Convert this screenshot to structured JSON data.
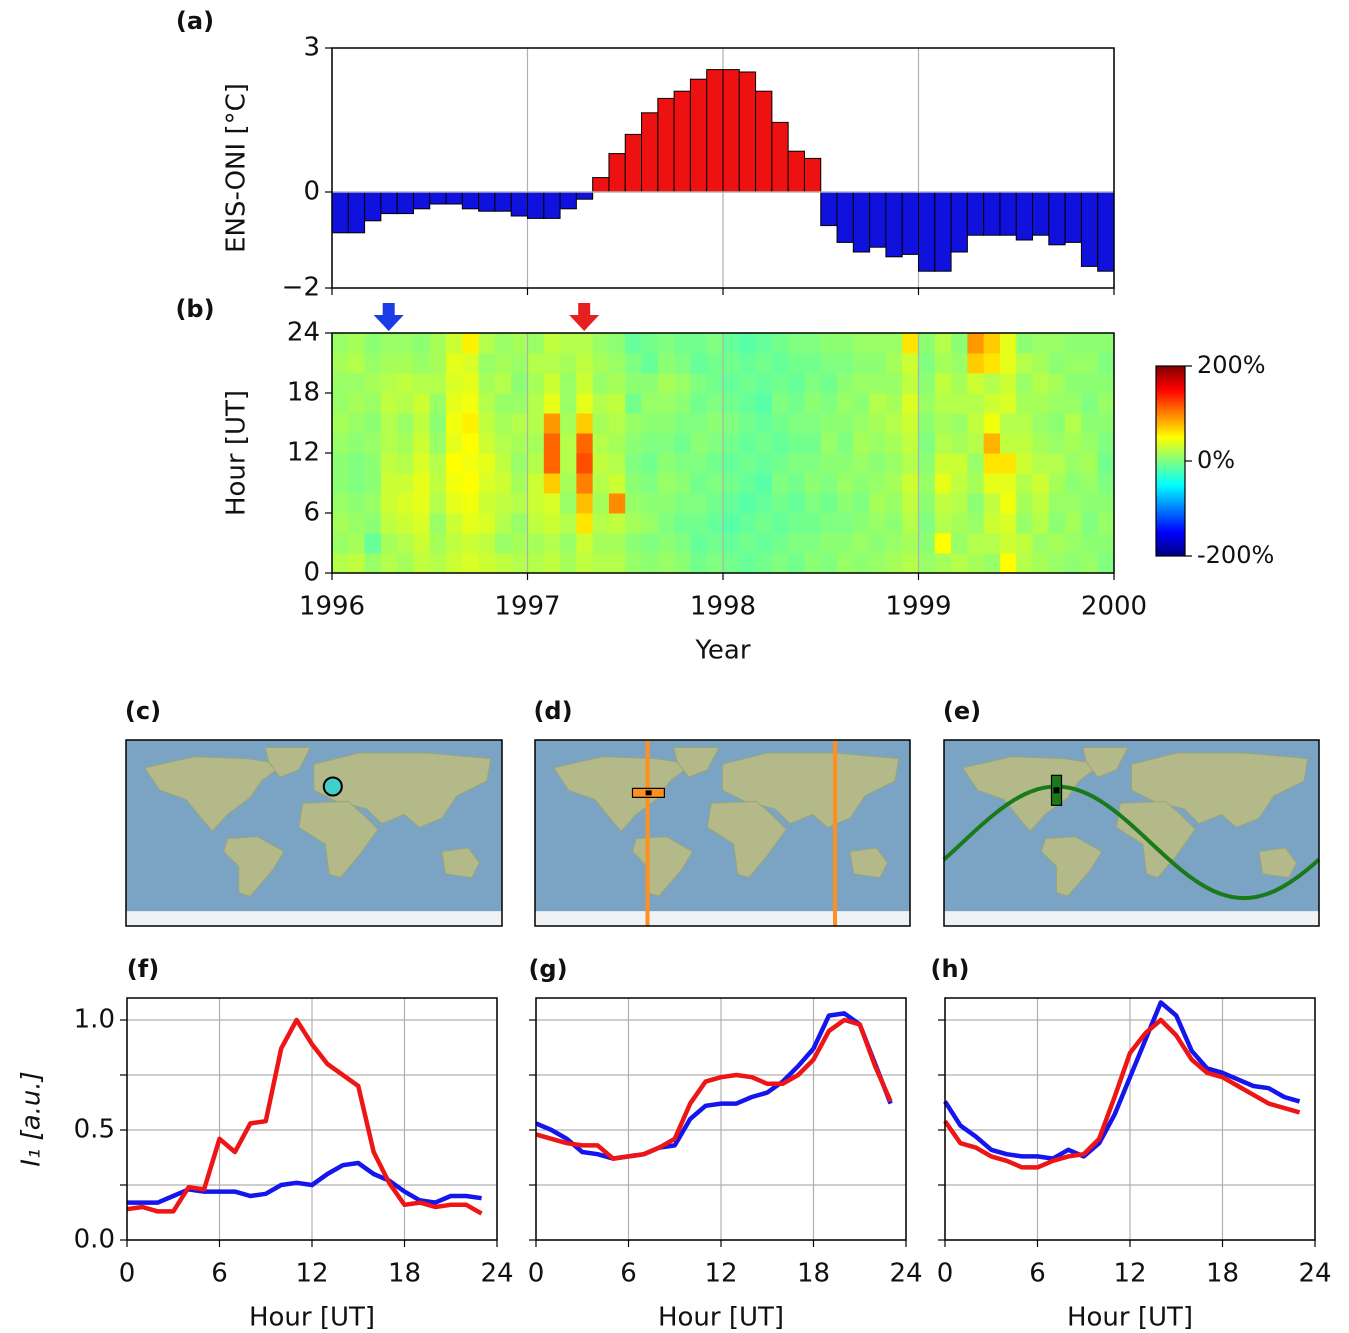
{
  "chart_data": [
    {
      "type": "bar",
      "panel": "(a)",
      "ylabel": "ENS-ONI [°C]",
      "values": [
        -0.85,
        -0.85,
        -0.6,
        -0.45,
        -0.45,
        -0.35,
        -0.25,
        -0.25,
        -0.35,
        -0.4,
        -0.4,
        -0.5,
        -0.55,
        -0.55,
        -0.35,
        -0.15,
        0.3,
        0.8,
        1.2,
        1.65,
        1.95,
        2.1,
        2.35,
        2.55,
        2.55,
        2.5,
        2.1,
        1.45,
        0.85,
        0.7,
        -0.7,
        -1.05,
        -1.25,
        -1.15,
        -1.35,
        -1.3,
        -1.65,
        -1.65,
        -1.25,
        -0.9,
        -0.9,
        -0.9,
        -1.0,
        -0.9,
        -1.1,
        -1.05,
        -1.55,
        -1.65
      ],
      "positive_color": "#ee1111",
      "negative_color": "#1111dd",
      "ylim": [
        -2,
        3
      ],
      "yticks": [
        {
          "value": -2,
          "label": "−2"
        },
        0,
        3
      ],
      "grid": true
    },
    {
      "type": "heatmap",
      "panel": "(b)",
      "xlabel": "Year",
      "ylabel": "Hour [UT]",
      "z": [
        [
          20,
          10,
          15,
          10,
          5,
          5,
          10,
          15,
          10,
          10,
          15,
          10
        ],
        [
          25,
          15,
          10,
          5,
          0,
          0,
          5,
          10,
          15,
          10,
          20,
          15
        ],
        [
          10,
          -10,
          5,
          10,
          5,
          5,
          10,
          5,
          10,
          15,
          10,
          5
        ],
        [
          20,
          15,
          25,
          30,
          30,
          25,
          20,
          20,
          25,
          20,
          15,
          10
        ],
        [
          15,
          20,
          30,
          35,
          30,
          20,
          15,
          10,
          20,
          25,
          15,
          10
        ],
        [
          25,
          30,
          35,
          40,
          40,
          35,
          30,
          25,
          30,
          20,
          10,
          5
        ],
        [
          20,
          15,
          10,
          20,
          25,
          20,
          10,
          5,
          10,
          20,
          15,
          15
        ],
        [
          30,
          25,
          30,
          40,
          45,
          50,
          40,
          45,
          40,
          35,
          40,
          30
        ],
        [
          35,
          30,
          40,
          45,
          50,
          45,
          50,
          55,
          45,
          40,
          35,
          55
        ],
        [
          30,
          25,
          35,
          30,
          35,
          40,
          30,
          25,
          20,
          15,
          10,
          20
        ],
        [
          25,
          10,
          20,
          25,
          30,
          25,
          20,
          15,
          10,
          20,
          15,
          10
        ],
        [
          20,
          15,
          10,
          20,
          15,
          10,
          15,
          20,
          10,
          5,
          10,
          15
        ],
        [
          20,
          15,
          25,
          30,
          30,
          20,
          15,
          20,
          20,
          15,
          20,
          10
        ],
        [
          25,
          20,
          30,
          35,
          70,
          110,
          110,
          90,
          40,
          30,
          20,
          25
        ],
        [
          15,
          10,
          20,
          10,
          15,
          20,
          20,
          15,
          10,
          10,
          15,
          20
        ],
        [
          25,
          30,
          60,
          75,
          100,
          120,
          110,
          70,
          40,
          30,
          25,
          20
        ],
        [
          20,
          15,
          20,
          15,
          20,
          25,
          20,
          15,
          20,
          10,
          15,
          10
        ],
        [
          20,
          15,
          25,
          95,
          30,
          20,
          15,
          20,
          25,
          15,
          10,
          5
        ],
        [
          10,
          5,
          15,
          10,
          5,
          0,
          5,
          10,
          -5,
          5,
          0,
          -10
        ],
        [
          5,
          0,
          10,
          5,
          0,
          -5,
          0,
          5,
          10,
          5,
          -10,
          -5
        ],
        [
          10,
          5,
          0,
          5,
          10,
          5,
          0,
          5,
          10,
          15,
          5,
          0
        ],
        [
          5,
          0,
          -5,
          0,
          5,
          0,
          -5,
          0,
          5,
          10,
          0,
          -5
        ],
        [
          -5,
          -10,
          -5,
          0,
          -5,
          0,
          5,
          0,
          -5,
          0,
          -10,
          -5
        ],
        [
          0,
          -5,
          -10,
          -5,
          0,
          -5,
          0,
          5,
          0,
          -5,
          -5,
          0
        ],
        [
          -5,
          -10,
          -15,
          -10,
          -5,
          -10,
          -5,
          0,
          -5,
          -10,
          -5,
          -10
        ],
        [
          -10,
          -5,
          -10,
          -15,
          -10,
          -5,
          -10,
          -5,
          -10,
          -5,
          -10,
          -15
        ],
        [
          -5,
          -10,
          -5,
          -10,
          -15,
          -10,
          -5,
          -10,
          -15,
          -10,
          -5,
          -10
        ],
        [
          0,
          -5,
          -10,
          -5,
          0,
          -5,
          -10,
          -5,
          0,
          -5,
          -10,
          -5
        ],
        [
          -5,
          0,
          -5,
          -10,
          -5,
          0,
          -5,
          0,
          -5,
          -10,
          -5,
          0
        ],
        [
          5,
          0,
          -5,
          0,
          5,
          0,
          -5,
          0,
          5,
          0,
          -5,
          0
        ],
        [
          0,
          5,
          0,
          -5,
          0,
          5,
          10,
          5,
          0,
          -5,
          0,
          5
        ],
        [
          10,
          5,
          0,
          5,
          10,
          5,
          0,
          5,
          10,
          5,
          0,
          5
        ],
        [
          5,
          10,
          5,
          0,
          5,
          10,
          15,
          10,
          5,
          10,
          5,
          10
        ],
        [
          10,
          5,
          10,
          15,
          10,
          5,
          10,
          15,
          20,
          10,
          5,
          10
        ],
        [
          15,
          10,
          5,
          10,
          15,
          10,
          15,
          20,
          15,
          10,
          15,
          10
        ],
        [
          20,
          15,
          20,
          25,
          30,
          20,
          25,
          30,
          35,
          25,
          30,
          60
        ],
        [
          10,
          5,
          0,
          5,
          10,
          5,
          0,
          5,
          10,
          5,
          0,
          5
        ],
        [
          15,
          50,
          20,
          25,
          40,
          30,
          20,
          15,
          20,
          25,
          15,
          20
        ],
        [
          20,
          10,
          15,
          20,
          25,
          30,
          15,
          10,
          20,
          15,
          10,
          5
        ],
        [
          15,
          20,
          10,
          5,
          15,
          10,
          20,
          25,
          20,
          30,
          70,
          90
        ],
        [
          10,
          20,
          30,
          25,
          40,
          60,
          80,
          45,
          30,
          20,
          60,
          70
        ],
        [
          50,
          30,
          35,
          45,
          40,
          60,
          25,
          20,
          35,
          30,
          40,
          40
        ],
        [
          20,
          25,
          10,
          15,
          20,
          30,
          25,
          20,
          15,
          10,
          20,
          5
        ],
        [
          15,
          10,
          20,
          25,
          30,
          20,
          15,
          10,
          15,
          20,
          15,
          10
        ],
        [
          10,
          15,
          5,
          10,
          15,
          20,
          10,
          5,
          10,
          15,
          5,
          10
        ],
        [
          5,
          10,
          15,
          10,
          5,
          10,
          15,
          20,
          10,
          5,
          10,
          5
        ],
        [
          10,
          5,
          0,
          5,
          10,
          15,
          10,
          5,
          0,
          5,
          10,
          5
        ],
        [
          0,
          5,
          10,
          5,
          0,
          -5,
          0,
          5,
          10,
          5,
          0,
          5
        ]
      ],
      "xlim": [
        1996,
        2000
      ],
      "xticks": [
        1996,
        1997,
        1998,
        1999,
        2000
      ],
      "ylim": [
        0,
        24
      ],
      "yticks": [
        0,
        6,
        12,
        18,
        24
      ],
      "clim": [
        -200,
        200
      ],
      "cticks": [
        {
          "value": 200,
          "label": "200%"
        },
        {
          "value": 0,
          "label": "0%"
        },
        {
          "value": -200,
          "label": "-200%"
        }
      ],
      "colormap": "jet",
      "grid": true,
      "arrows": [
        {
          "x": 1996.29,
          "color": "#1a3be6"
        },
        {
          "x": 1997.29,
          "color": "#e62020"
        }
      ]
    },
    {
      "type": "map",
      "panel": "(c)",
      "marker": "circle",
      "marker_color": "#40d0c8"
    },
    {
      "type": "map",
      "panel": "(d)",
      "marker": "meridian",
      "marker_color": "#ff9020"
    },
    {
      "type": "map",
      "panel": "(e)",
      "marker": "sine",
      "marker_color": "#1a7a1a"
    },
    {
      "type": "line",
      "panel": "(f)",
      "xlabel": "Hour [UT]",
      "ylabel": "I₁ [a.u.]",
      "x": [
        0,
        1,
        2,
        3,
        4,
        5,
        6,
        7,
        8,
        9,
        10,
        11,
        12,
        13,
        14,
        15,
        16,
        17,
        18,
        19,
        20,
        21,
        22,
        23
      ],
      "series": [
        {
          "color": "#1515ee",
          "values": [
            0.17,
            0.17,
            0.17,
            0.2,
            0.23,
            0.22,
            0.22,
            0.22,
            0.2,
            0.21,
            0.25,
            0.26,
            0.25,
            0.3,
            0.34,
            0.35,
            0.3,
            0.27,
            0.22,
            0.18,
            0.17,
            0.2,
            0.2,
            0.19
          ]
        },
        {
          "color": "#ee1515",
          "values": [
            0.14,
            0.15,
            0.13,
            0.13,
            0.24,
            0.23,
            0.46,
            0.4,
            0.53,
            0.54,
            0.87,
            1.0,
            0.89,
            0.8,
            0.75,
            0.7,
            0.4,
            0.26,
            0.16,
            0.17,
            0.15,
            0.16,
            0.16,
            0.12
          ]
        }
      ],
      "xlim": [
        0,
        24
      ],
      "xticks": [
        0,
        6,
        12,
        18,
        24
      ],
      "ylim": [
        0,
        1.1
      ],
      "yticks": [
        {
          "value": 0,
          "label": "0.0"
        },
        {
          "value": 0.5,
          "label": "0.5"
        },
        {
          "value": 1,
          "label": "1.0"
        }
      ],
      "yminor": [
        0.25,
        0.75
      ],
      "grid": true
    },
    {
      "type": "line",
      "panel": "(g)",
      "xlabel": "Hour [UT]",
      "x": [
        0,
        1,
        2,
        3,
        4,
        5,
        6,
        7,
        8,
        9,
        10,
        11,
        12,
        13,
        14,
        15,
        16,
        17,
        18,
        19,
        20,
        21,
        22,
        23
      ],
      "series": [
        {
          "color": "#1515ee",
          "values": [
            0.53,
            0.5,
            0.46,
            0.4,
            0.39,
            0.37,
            0.38,
            0.39,
            0.42,
            0.43,
            0.55,
            0.61,
            0.62,
            0.62,
            0.65,
            0.67,
            0.72,
            0.79,
            0.87,
            1.02,
            1.03,
            0.98,
            0.8,
            0.62
          ]
        },
        {
          "color": "#ee1515",
          "values": [
            0.48,
            0.46,
            0.44,
            0.43,
            0.43,
            0.37,
            0.38,
            0.39,
            0.42,
            0.46,
            0.62,
            0.72,
            0.74,
            0.75,
            0.74,
            0.71,
            0.71,
            0.75,
            0.82,
            0.95,
            1.0,
            0.98,
            0.79,
            0.63
          ]
        }
      ],
      "xlim": [
        0,
        24
      ],
      "xticks": [
        0,
        6,
        12,
        18,
        24
      ],
      "ylim": [
        0,
        1.1
      ],
      "yminor": [
        0,
        0.25,
        0.5,
        0.75,
        1
      ],
      "grid": true
    },
    {
      "type": "line",
      "panel": "(h)",
      "xlabel": "Hour [UT]",
      "x": [
        0,
        1,
        2,
        3,
        4,
        5,
        6,
        7,
        8,
        9,
        10,
        11,
        12,
        13,
        14,
        15,
        16,
        17,
        18,
        19,
        20,
        21,
        22,
        23
      ],
      "series": [
        {
          "color": "#1515ee",
          "values": [
            0.63,
            0.52,
            0.47,
            0.41,
            0.39,
            0.38,
            0.38,
            0.37,
            0.41,
            0.38,
            0.44,
            0.57,
            0.74,
            0.91,
            1.08,
            1.02,
            0.86,
            0.78,
            0.76,
            0.73,
            0.7,
            0.69,
            0.65,
            0.63
          ]
        },
        {
          "color": "#ee1515",
          "values": [
            0.54,
            0.44,
            0.42,
            0.38,
            0.36,
            0.33,
            0.33,
            0.36,
            0.38,
            0.39,
            0.46,
            0.65,
            0.85,
            0.94,
            1.0,
            0.93,
            0.82,
            0.76,
            0.74,
            0.7,
            0.66,
            0.62,
            0.6,
            0.58
          ]
        }
      ],
      "xlim": [
        0,
        24
      ],
      "xticks": [
        0,
        6,
        12,
        18,
        24
      ],
      "ylim": [
        0,
        1.1
      ],
      "yminor": [
        0,
        0.25,
        0.5,
        0.75,
        1
      ],
      "grid": true
    }
  ]
}
